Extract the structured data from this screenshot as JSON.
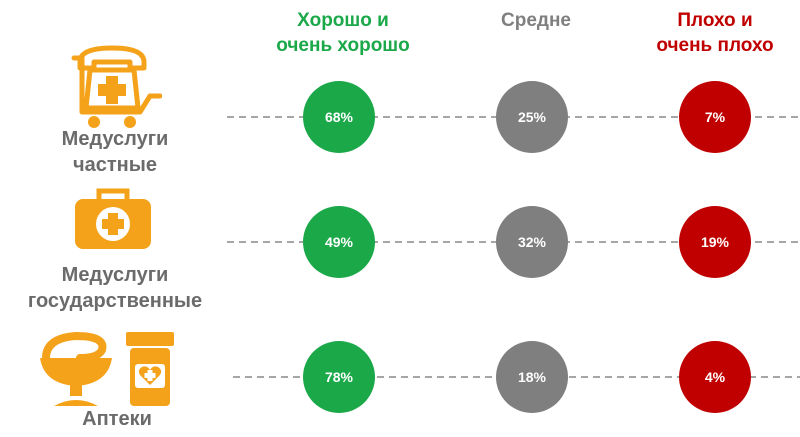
{
  "colors": {
    "good": "#1aa849",
    "average": "#7f7f7f",
    "bad": "#c00000",
    "label": "#6b6b6b",
    "icon": "#f5a21b",
    "line": "#a6a6a6"
  },
  "chart_data": {
    "type": "table",
    "columns": [
      {
        "key": "good",
        "label": "Хорошо и\nочень хорошо",
        "color": "#1aa849"
      },
      {
        "key": "average",
        "label": "Средне",
        "color": "#7f7f7f"
      },
      {
        "key": "bad",
        "label": "Плохо и\nочень плохо",
        "color": "#c00000"
      }
    ],
    "rows": [
      {
        "label": "Медуслуги\nчастные",
        "icon": "phone-cart-medical-icon",
        "values": [
          68,
          25,
          7
        ]
      },
      {
        "label": "Медуслуги\nгосударственные",
        "icon": "first-aid-kit-icon",
        "values": [
          49,
          32,
          19
        ]
      },
      {
        "label": "Аптеки",
        "icon": "pharmacy-bowl-pill-bottle-icon",
        "values": [
          78,
          18,
          4
        ]
      }
    ],
    "unit": "%"
  }
}
